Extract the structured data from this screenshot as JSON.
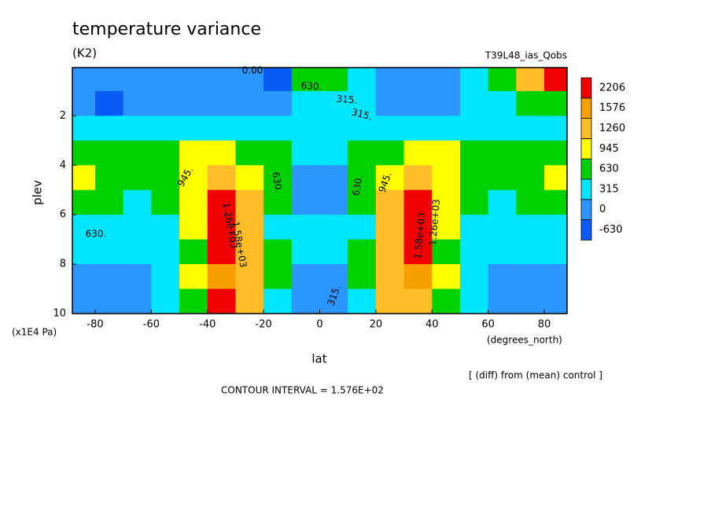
{
  "chart_data": {
    "type": "contour",
    "title": "temperature variance",
    "subtitle": "(K2)",
    "run_label": "T39L48_ias_Qobs",
    "x_label": "lat",
    "x_units": "(degrees_north)",
    "y_label": "plev",
    "y_units": "(x1E4 Pa)",
    "note": "[ (diff) from (mean) control ]",
    "footer": "CONTOUR INTERVAL = 1.576E+02",
    "xlim": [
      -88.125,
      88.125
    ],
    "ylim": [
      10,
      0.05
    ],
    "xticks": [
      -80,
      -60,
      -40,
      -20,
      0,
      20,
      40,
      60,
      80
    ],
    "yticks": [
      2,
      4,
      6,
      8,
      10
    ],
    "x": [
      -85,
      -75,
      -65,
      -55,
      -45,
      -35,
      -25,
      -15,
      -5,
      5,
      15,
      25,
      35,
      45,
      55,
      65,
      75,
      85
    ],
    "y": [
      0.5,
      1.5,
      2.5,
      3.5,
      4.5,
      5.5,
      6.5,
      7.5,
      8.5,
      9.5
    ],
    "z": [
      [
        300,
        200,
        250,
        200,
        150,
        150,
        200,
        -100,
        700,
        700,
        400,
        250,
        200,
        300,
        500,
        900,
        1400,
        2250
      ],
      [
        150,
        -50,
        150,
        250,
        250,
        200,
        250,
        300,
        400,
        400,
        350,
        250,
        200,
        250,
        350,
        550,
        700,
        900
      ],
      [
        500,
        450,
        400,
        400,
        450,
        500,
        450,
        400,
        350,
        350,
        400,
        450,
        500,
        450,
        400,
        400,
        450,
        500
      ],
      [
        700,
        700,
        680,
        800,
        1000,
        1100,
        900,
        650,
        400,
        400,
        650,
        900,
        1100,
        1000,
        800,
        680,
        700,
        700
      ],
      [
        1000,
        800,
        700,
        800,
        1050,
        1400,
        1100,
        700,
        300,
        300,
        700,
        1100,
        1400,
        1050,
        800,
        700,
        800,
        1000
      ],
      [
        900,
        700,
        600,
        700,
        1000,
        2250,
        1300,
        650,
        200,
        200,
        650,
        1300,
        2250,
        1000,
        700,
        600,
        700,
        900
      ],
      [
        500,
        450,
        450,
        600,
        950,
        2250,
        1400,
        600,
        350,
        350,
        600,
        1400,
        2250,
        950,
        600,
        450,
        450,
        500
      ],
      [
        450,
        350,
        400,
        550,
        900,
        2250,
        1300,
        650,
        400,
        400,
        650,
        1300,
        2250,
        900,
        550,
        400,
        350,
        450
      ],
      [
        100,
        150,
        300,
        500,
        1000,
        1600,
        1300,
        700,
        200,
        200,
        700,
        1300,
        1600,
        1000,
        500,
        300,
        150,
        100
      ],
      [
        100,
        150,
        250,
        400,
        700,
        2250,
        1400,
        600,
        250,
        250,
        600,
        1400,
        1400,
        700,
        400,
        250,
        150,
        100
      ]
    ],
    "levels": [
      -630,
      0,
      315,
      630,
      945,
      1260,
      1576,
      2206
    ],
    "colors": [
      "#0a5af5",
      "#2c96ff",
      "#00e6ff",
      "#00d200",
      "#ffff00",
      "#ffbe28",
      "#f5a000",
      "#f00000"
    ],
    "contour_labels": [
      {
        "value": 0,
        "label": "0.00"
      },
      {
        "value": 630,
        "label": "630."
      },
      {
        "value": 315,
        "label": "315."
      },
      {
        "value": 315,
        "label": "315."
      },
      {
        "value": 945,
        "label": "945."
      },
      {
        "value": 630,
        "label": "630."
      },
      {
        "value": 1260,
        "label": "1.26e+03"
      },
      {
        "value": 1580,
        "label": "1.58e+03"
      },
      {
        "value": 630,
        "label": "630."
      },
      {
        "value": 630,
        "label": "630."
      },
      {
        "value": 945,
        "label": "945."
      },
      {
        "value": 1580,
        "label": "1.58e+03"
      },
      {
        "value": 1260,
        "label": "1.26e+03"
      },
      {
        "value": 315,
        "label": "315."
      }
    ]
  }
}
